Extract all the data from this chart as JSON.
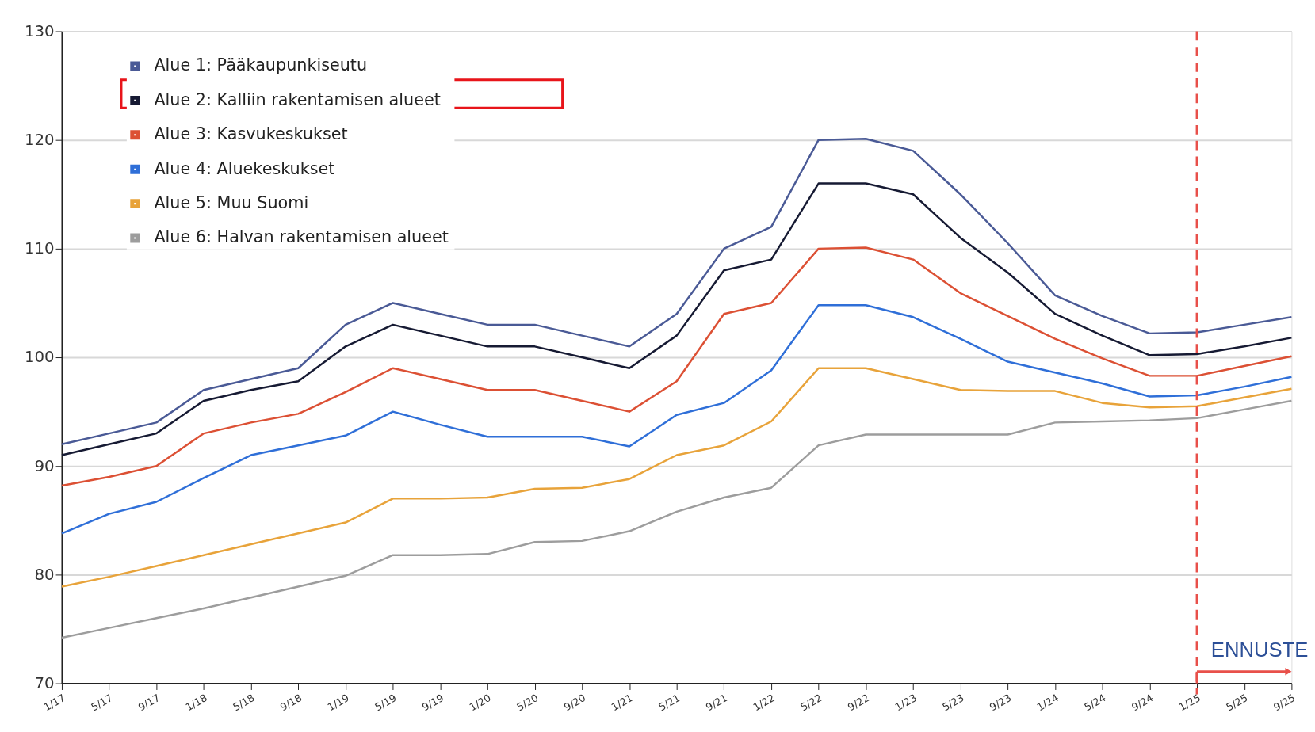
{
  "chart_data": {
    "type": "line",
    "categories": [
      "1/17",
      "5/17",
      "9/17",
      "1/18",
      "5/18",
      "9/18",
      "1/19",
      "5/19",
      "9/19",
      "1/20",
      "5/20",
      "9/20",
      "1/21",
      "5/21",
      "9/21",
      "1/22",
      "5/22",
      "9/22",
      "1/23",
      "5/23",
      "9/23",
      "1/24",
      "5/24",
      "9/24",
      "1/25",
      "5/25",
      "9/25"
    ],
    "series": [
      {
        "name": "Alue 1:  Pääkaupunkiseutu",
        "color": "#4a5a96",
        "values": [
          92,
          93,
          94,
          97,
          98,
          99,
          103,
          105,
          104,
          103,
          103,
          102,
          101,
          104,
          110,
          112,
          120,
          120.1,
          119,
          115,
          110.5,
          105.7,
          103.8,
          102.2,
          102.3,
          103,
          103.7
        ]
      },
      {
        "name": "Alue 2:  Kalliin rakentamisen alueet",
        "color": "#161a33",
        "values": [
          91,
          92,
          93,
          96,
          97,
          97.8,
          101,
          103,
          102,
          101,
          101,
          100,
          99,
          102,
          108,
          109,
          116,
          116,
          115,
          111,
          107.8,
          104,
          102,
          100.2,
          100.3,
          101,
          101.8
        ]
      },
      {
        "name": "Alue 3:  Kasvukeskukset",
        "color": "#dc5034",
        "values": [
          88.2,
          89,
          90,
          93,
          94,
          94.8,
          96.8,
          99,
          98,
          97,
          97,
          96,
          95,
          97.8,
          104,
          105,
          110,
          110.1,
          109,
          105.9,
          103.8,
          101.7,
          99.9,
          98.3,
          98.3,
          99.2,
          100.1
        ]
      },
      {
        "name": "Alue 4:  Aluekeskukset",
        "color": "#2f6fd8",
        "values": [
          83.8,
          85.6,
          86.7,
          88.9,
          91,
          91.9,
          92.8,
          95,
          93.8,
          92.7,
          92.7,
          92.7,
          91.8,
          94.7,
          95.8,
          98.8,
          104.8,
          104.8,
          103.7,
          101.7,
          99.6,
          98.6,
          97.6,
          96.4,
          96.5,
          97.3,
          98.2
        ]
      },
      {
        "name": "Alue 5:  Muu Suomi",
        "color": "#e8a33a",
        "values": [
          78.9,
          79.8,
          80.8,
          81.8,
          82.8,
          83.8,
          84.8,
          87,
          87,
          87.1,
          87.9,
          88,
          88.8,
          91,
          91.9,
          94.1,
          99,
          99,
          98,
          97,
          96.9,
          96.9,
          95.8,
          95.4,
          95.5,
          96.3,
          97.1
        ]
      },
      {
        "name": "Alue 6:  Halvan rakentamisen alueet",
        "color": "#9d9d9d",
        "values": [
          74.2,
          75.1,
          76,
          76.9,
          77.9,
          78.9,
          79.9,
          81.8,
          81.8,
          81.9,
          83,
          83.1,
          84,
          85.8,
          87.1,
          88,
          91.9,
          92.9,
          92.9,
          92.9,
          92.9,
          94,
          94.1,
          94.2,
          94.4,
          95.2,
          96
        ]
      }
    ],
    "ylim": [
      70,
      130
    ],
    "yticks": [
      70,
      80,
      90,
      100,
      110,
      120,
      130
    ],
    "grid": "y",
    "legend": "top left",
    "marker": "none",
    "line_style": "solid",
    "ref_lines": [
      {
        "axis": "x",
        "value": "1/25",
        "label": "ENNUSTE",
        "color": "#e8504a",
        "line_style": "dashed"
      }
    ]
  }
}
